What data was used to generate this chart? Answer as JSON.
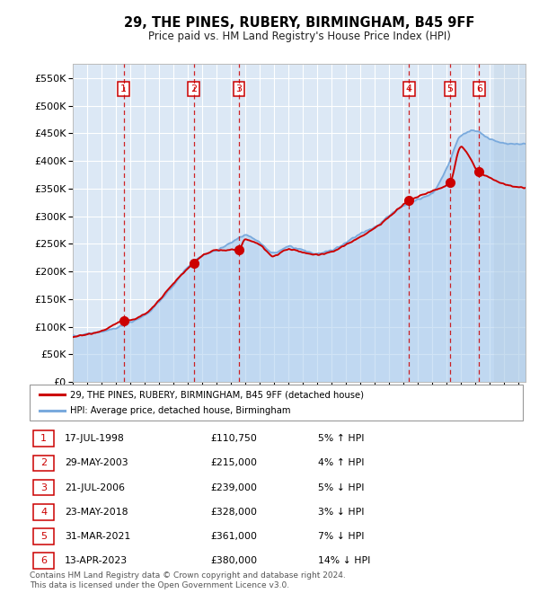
{
  "title": "29, THE PINES, RUBERY, BIRMINGHAM, B45 9FF",
  "subtitle": "Price paid vs. HM Land Registry's House Price Index (HPI)",
  "x_start_year": 1995,
  "x_end_year": 2026,
  "y_min": 0,
  "y_max": 575000,
  "y_ticks": [
    0,
    50000,
    100000,
    150000,
    200000,
    250000,
    300000,
    350000,
    400000,
    450000,
    500000,
    550000
  ],
  "background_color": "#dce8f5",
  "grid_color": "#ffffff",
  "sale_dates_x": [
    1998.54,
    2003.41,
    2006.55,
    2018.39,
    2021.25,
    2023.28
  ],
  "sale_prices": [
    110750,
    215000,
    239000,
    328000,
    361000,
    380000
  ],
  "sale_labels": [
    "1",
    "2",
    "3",
    "4",
    "5",
    "6"
  ],
  "legend_label_red": "29, THE PINES, RUBERY, BIRMINGHAM, B45 9FF (detached house)",
  "legend_label_blue": "HPI: Average price, detached house, Birmingham",
  "table_data": [
    [
      "1",
      "17-JUL-1998",
      "£110,750",
      "5% ↑ HPI"
    ],
    [
      "2",
      "29-MAY-2003",
      "£215,000",
      "4% ↑ HPI"
    ],
    [
      "3",
      "21-JUL-2006",
      "£239,000",
      "5% ↓ HPI"
    ],
    [
      "4",
      "23-MAY-2018",
      "£328,000",
      "3% ↓ HPI"
    ],
    [
      "5",
      "31-MAR-2021",
      "£361,000",
      "7% ↓ HPI"
    ],
    [
      "6",
      "13-APR-2023",
      "£380,000",
      "14% ↓ HPI"
    ]
  ],
  "footnote1": "Contains HM Land Registry data © Crown copyright and database right 2024.",
  "footnote2": "This data is licensed under the Open Government Licence v3.0.",
  "red_color": "#cc0000",
  "blue_color": "#7aaadd",
  "blue_fill": "#aaccee",
  "hatch_color": "#b0c8dd"
}
